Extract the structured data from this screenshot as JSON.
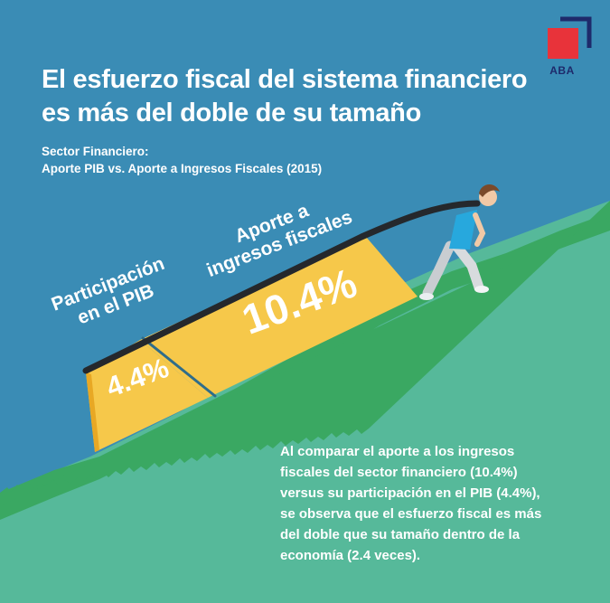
{
  "brand": {
    "logo_text": "ABA",
    "colors": {
      "red": "#e8333a",
      "navy": "#1e2a6b"
    }
  },
  "headline": {
    "line1": "El esfuerzo fiscal del sistema financiero",
    "line2": "es más del doble de su tamaño"
  },
  "subheading": {
    "line1": "Sector Financiero:",
    "line2": "Aporte PIB vs. Aporte a Ingresos Fiscales (2015)"
  },
  "illustration": {
    "pib_label": {
      "line1": "Participación",
      "line2": "en el PIB"
    },
    "pib_value": "4.4%",
    "aporte_label": {
      "line1": "Aporte a",
      "line2": "ingresos fiscales"
    },
    "aporte_value": "10.4%",
    "colors": {
      "sky": "#3a8cb5",
      "hill": "#56b99a",
      "grass": "#3aa862",
      "block_light": "#f6c84a",
      "block_dark": "#e8a824",
      "rope": "#25282c"
    }
  },
  "description": {
    "line1": "Al comparar el aporte a los ingresos",
    "line2": "fiscales del sector financiero (10.4%)",
    "line3": "versus su participación en el PIB (4.4%),",
    "line4": "se observa que el esfuerzo fiscal es más",
    "line5": "del doble que su tamaño dentro de la",
    "line6": "economía (2.4 veces)."
  }
}
